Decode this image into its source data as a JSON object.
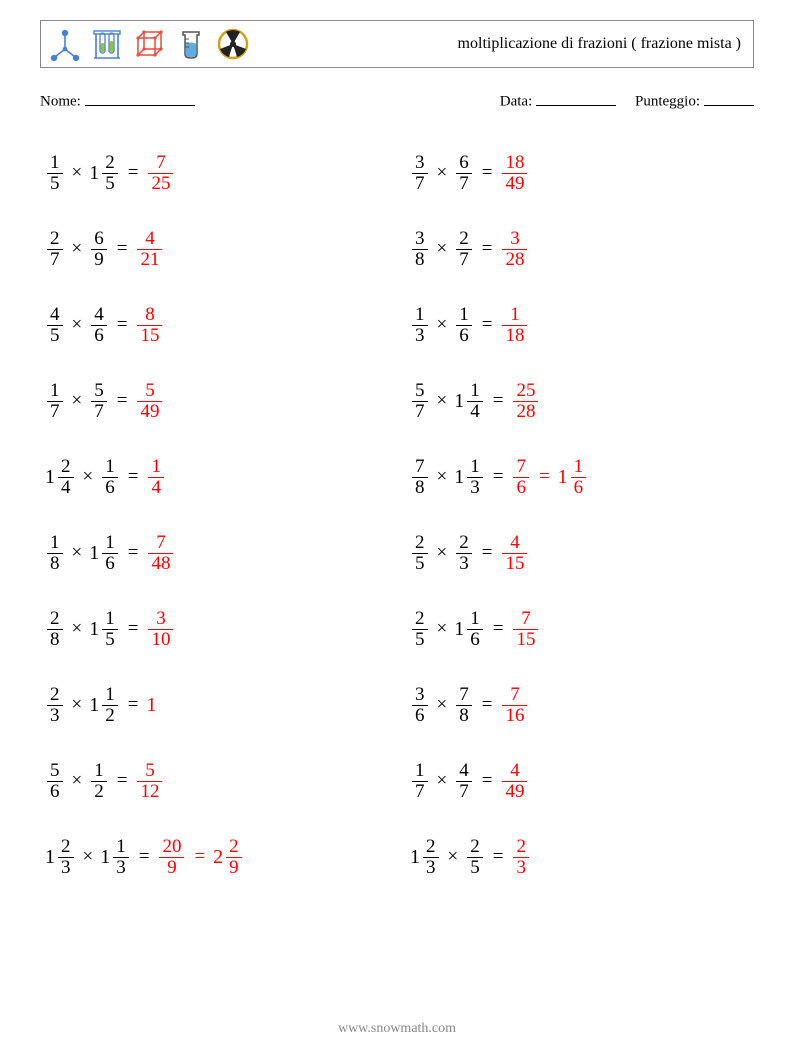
{
  "header": {
    "title": "moltiplicazione di frazioni ( frazione mista )",
    "icon_colors": {
      "atom": "#4a7fd6",
      "tubes_stand": "#4a7fd6",
      "tubes_liquid": "#8dc63f",
      "cube": "#e74c3c",
      "beaker_outline": "#555",
      "beaker_liquid": "#5dade2",
      "rad_ring": "#d4a017",
      "rad_blade": "#222"
    }
  },
  "meta": {
    "name_label": "Nome:",
    "date_label": "Data:",
    "score_label": "Punteggio:"
  },
  "style": {
    "answer_color": "#ff0000",
    "font": "Georgia, 'Times New Roman', serif",
    "base_fontsize": 20
  },
  "left_problems": [
    {
      "a": {
        "n": 1,
        "d": 5
      },
      "b": {
        "w": 1,
        "n": 2,
        "d": 5
      },
      "ans": [
        {
          "n": 7,
          "d": 25
        }
      ]
    },
    {
      "a": {
        "n": 2,
        "d": 7
      },
      "b": {
        "n": 6,
        "d": 9
      },
      "ans": [
        {
          "n": 4,
          "d": 21
        }
      ]
    },
    {
      "a": {
        "n": 4,
        "d": 5
      },
      "b": {
        "n": 4,
        "d": 6
      },
      "ans": [
        {
          "n": 8,
          "d": 15
        }
      ]
    },
    {
      "a": {
        "n": 1,
        "d": 7
      },
      "b": {
        "n": 5,
        "d": 7
      },
      "ans": [
        {
          "n": 5,
          "d": 49
        }
      ]
    },
    {
      "a": {
        "w": 1,
        "n": 2,
        "d": 4
      },
      "b": {
        "n": 1,
        "d": 6
      },
      "ans": [
        {
          "n": 1,
          "d": 4
        }
      ]
    },
    {
      "a": {
        "n": 1,
        "d": 8
      },
      "b": {
        "w": 1,
        "n": 1,
        "d": 6
      },
      "ans": [
        {
          "n": 7,
          "d": 48
        }
      ]
    },
    {
      "a": {
        "n": 2,
        "d": 8
      },
      "b": {
        "w": 1,
        "n": 1,
        "d": 5
      },
      "ans": [
        {
          "n": 3,
          "d": 10
        }
      ]
    },
    {
      "a": {
        "n": 2,
        "d": 3
      },
      "b": {
        "w": 1,
        "n": 1,
        "d": 2
      },
      "ans": [
        {
          "int": 1
        }
      ]
    },
    {
      "a": {
        "n": 5,
        "d": 6
      },
      "b": {
        "n": 1,
        "d": 2
      },
      "ans": [
        {
          "n": 5,
          "d": 12
        }
      ]
    },
    {
      "a": {
        "w": 1,
        "n": 2,
        "d": 3
      },
      "b": {
        "w": 1,
        "n": 1,
        "d": 3
      },
      "ans": [
        {
          "n": 20,
          "d": 9
        },
        {
          "w": 2,
          "n": 2,
          "d": 9
        }
      ]
    }
  ],
  "right_problems": [
    {
      "a": {
        "n": 3,
        "d": 7
      },
      "b": {
        "n": 6,
        "d": 7
      },
      "ans": [
        {
          "n": 18,
          "d": 49
        }
      ]
    },
    {
      "a": {
        "n": 3,
        "d": 8
      },
      "b": {
        "n": 2,
        "d": 7
      },
      "ans": [
        {
          "n": 3,
          "d": 28
        }
      ]
    },
    {
      "a": {
        "n": 1,
        "d": 3
      },
      "b": {
        "n": 1,
        "d": 6
      },
      "ans": [
        {
          "n": 1,
          "d": 18
        }
      ]
    },
    {
      "a": {
        "n": 5,
        "d": 7
      },
      "b": {
        "w": 1,
        "n": 1,
        "d": 4
      },
      "ans": [
        {
          "n": 25,
          "d": 28
        }
      ]
    },
    {
      "a": {
        "n": 7,
        "d": 8
      },
      "b": {
        "w": 1,
        "n": 1,
        "d": 3
      },
      "ans": [
        {
          "n": 7,
          "d": 6
        },
        {
          "w": 1,
          "n": 1,
          "d": 6
        }
      ]
    },
    {
      "a": {
        "n": 2,
        "d": 5
      },
      "b": {
        "n": 2,
        "d": 3
      },
      "ans": [
        {
          "n": 4,
          "d": 15
        }
      ]
    },
    {
      "a": {
        "n": 2,
        "d": 5
      },
      "b": {
        "w": 1,
        "n": 1,
        "d": 6
      },
      "ans": [
        {
          "n": 7,
          "d": 15
        }
      ]
    },
    {
      "a": {
        "n": 3,
        "d": 6
      },
      "b": {
        "n": 7,
        "d": 8
      },
      "ans": [
        {
          "n": 7,
          "d": 16
        }
      ]
    },
    {
      "a": {
        "n": 1,
        "d": 7
      },
      "b": {
        "n": 4,
        "d": 7
      },
      "ans": [
        {
          "n": 4,
          "d": 49
        }
      ]
    },
    {
      "a": {
        "w": 1,
        "n": 2,
        "d": 3
      },
      "b": {
        "n": 2,
        "d": 5
      },
      "ans": [
        {
          "n": 2,
          "d": 3
        }
      ]
    }
  ],
  "footer": "www.snowmath.com"
}
